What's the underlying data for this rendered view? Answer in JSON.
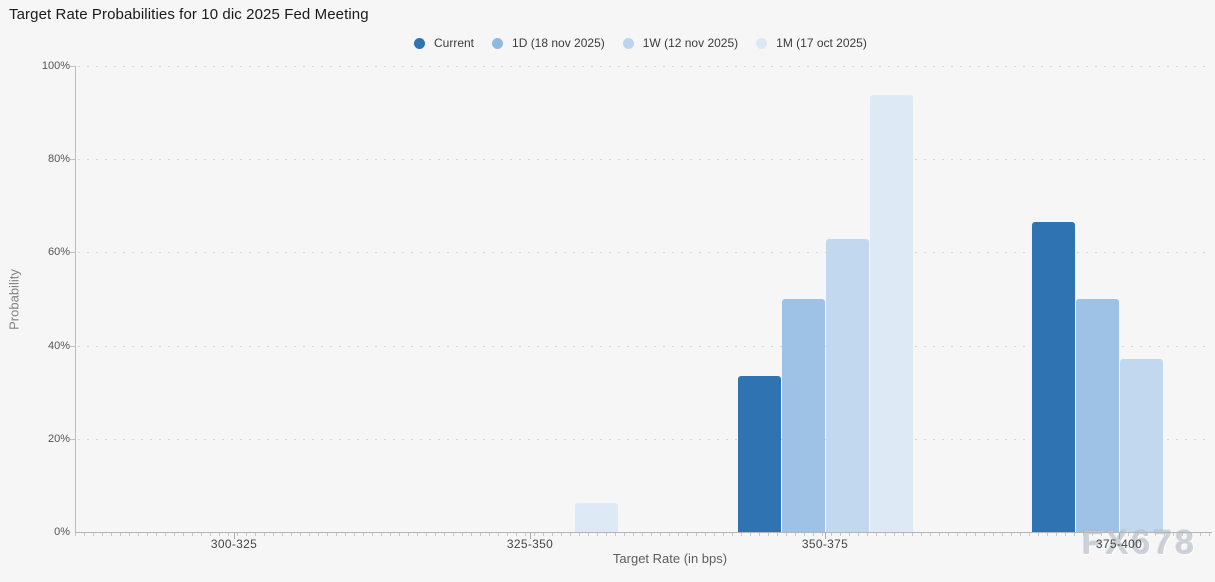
{
  "page": {
    "title": "Target Rate Probabilities for 10 dic 2025 Fed Meeting",
    "watermark": "FX678"
  },
  "legend": {
    "items": [
      {
        "label": "Current",
        "color": "#2f73b3"
      },
      {
        "label": "1D (18 nov 2025)",
        "color": "#90b9e0"
      },
      {
        "label": "1W (12 nov 2025)",
        "color": "#bcd5ec"
      },
      {
        "label": "1M (17 oct 2025)",
        "color": "#dce8f5"
      }
    ]
  },
  "chart_data": {
    "type": "bar",
    "title": "Target Rate Probabilities for 10 dic 2025 Fed Meeting",
    "categories": [
      "300-325",
      "325-350",
      "350-375",
      "375-400"
    ],
    "series": [
      {
        "name": "Current",
        "color": "#2f73b3",
        "values": [
          0,
          0,
          33.4,
          66.6
        ]
      },
      {
        "name": "1D (18 nov 2025)",
        "color": "#9dc2e5",
        "values": [
          0,
          0,
          50.1,
          49.9
        ]
      },
      {
        "name": "1W (12 nov 2025)",
        "color": "#c1d8ee",
        "values": [
          0,
          0,
          62.8,
          37.2
        ]
      },
      {
        "name": "1M (17 oct 2025)",
        "color": "#dde9f5",
        "values": [
          0,
          6.3,
          93.7,
          0
        ]
      }
    ],
    "xlabel": "Target Rate (in bps)",
    "ylabel": "Probability",
    "ylim": [
      0,
      100
    ],
    "yticks": [
      "0%",
      "20%",
      "40%",
      "60%",
      "80%",
      "100%"
    ],
    "grid": "dotted-horizontal",
    "legend_position": "top"
  }
}
